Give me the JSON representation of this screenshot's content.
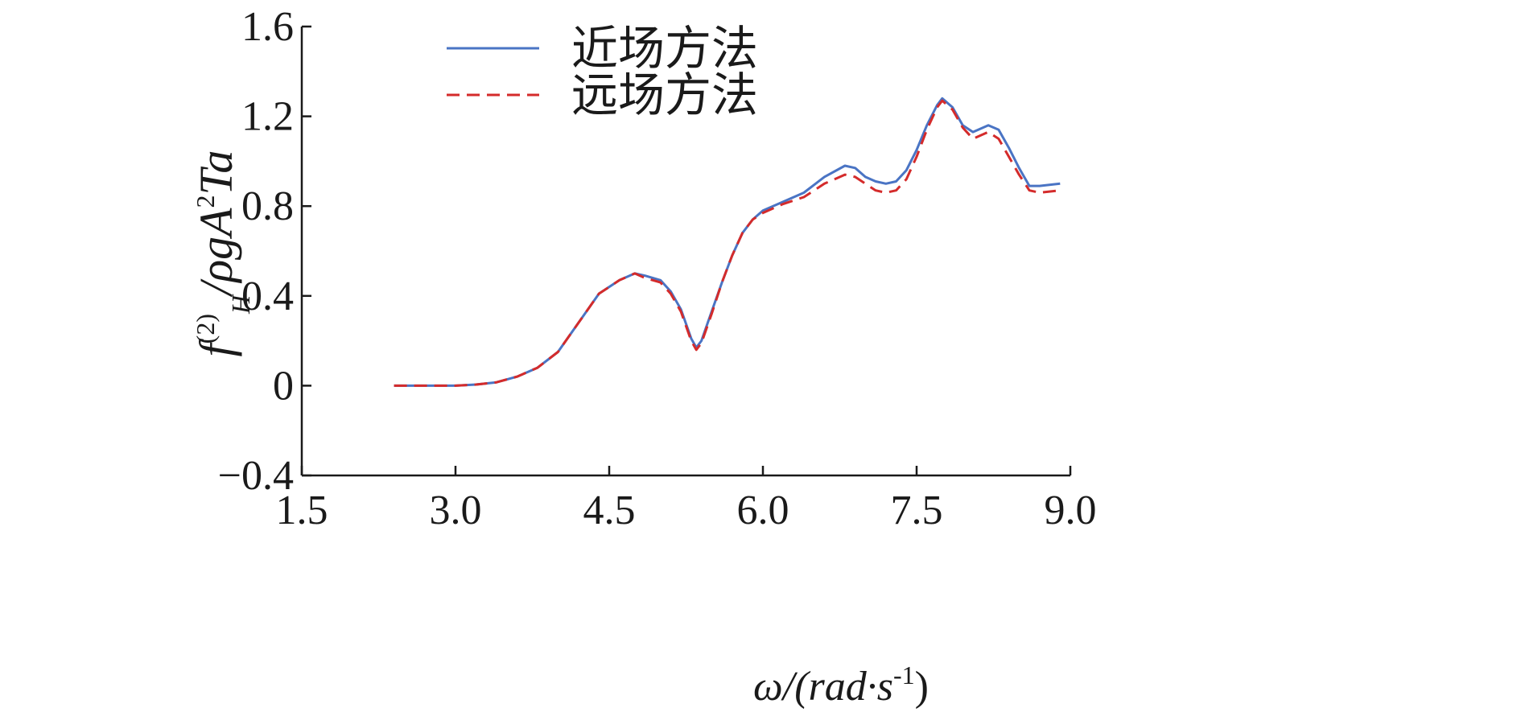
{
  "chart_data": {
    "type": "line",
    "title": "",
    "xlabel": "ω/(rad·s",
    "xlabel_superscript": "-1",
    "xlabel_suffix": ")",
    "ylabel": {
      "f": "f",
      "sup": "(2)",
      "sub": "H",
      "rest": "/ρgA",
      "sup2": "2",
      "tail": "Ta"
    },
    "xlim": [
      1.5,
      9.0
    ],
    "ylim": [
      -0.4,
      1.6
    ],
    "xticks": [
      "1.5",
      "3.0",
      "4.5",
      "6.0",
      "7.5",
      "9.0"
    ],
    "yticks": [
      "−0.4",
      "0",
      "0.4",
      "0.8",
      "1.2",
      "1.6"
    ],
    "grid": false,
    "legend_position": "top-left",
    "series": [
      {
        "name": "近场方法",
        "color": "#4a74c4",
        "style": "solid",
        "x": [
          2.4,
          2.7,
          3.0,
          3.2,
          3.4,
          3.6,
          3.8,
          4.0,
          4.2,
          4.4,
          4.6,
          4.75,
          4.85,
          5.0,
          5.1,
          5.2,
          5.3,
          5.35,
          5.4,
          5.5,
          5.6,
          5.7,
          5.8,
          5.9,
          6.0,
          6.2,
          6.4,
          6.6,
          6.8,
          6.9,
          7.0,
          7.1,
          7.2,
          7.3,
          7.4,
          7.5,
          7.6,
          7.7,
          7.75,
          7.85,
          7.95,
          8.05,
          8.2,
          8.3,
          8.4,
          8.5,
          8.6,
          8.7,
          8.9
        ],
        "y": [
          0.0,
          0.0,
          0.0,
          0.005,
          0.015,
          0.04,
          0.08,
          0.15,
          0.28,
          0.41,
          0.47,
          0.5,
          0.49,
          0.47,
          0.42,
          0.34,
          0.21,
          0.17,
          0.2,
          0.33,
          0.46,
          0.58,
          0.68,
          0.74,
          0.78,
          0.82,
          0.86,
          0.93,
          0.98,
          0.97,
          0.93,
          0.91,
          0.9,
          0.91,
          0.96,
          1.05,
          1.16,
          1.25,
          1.28,
          1.24,
          1.16,
          1.13,
          1.16,
          1.14,
          1.06,
          0.97,
          0.89,
          0.89,
          0.9
        ]
      },
      {
        "name": "远场方法",
        "color": "#d42b2b",
        "style": "dashed",
        "x": [
          2.4,
          2.7,
          3.0,
          3.2,
          3.4,
          3.6,
          3.8,
          4.0,
          4.2,
          4.4,
          4.6,
          4.75,
          4.85,
          5.0,
          5.1,
          5.2,
          5.3,
          5.35,
          5.4,
          5.5,
          5.6,
          5.7,
          5.8,
          5.9,
          6.0,
          6.2,
          6.4,
          6.6,
          6.8,
          6.9,
          7.0,
          7.1,
          7.2,
          7.3,
          7.4,
          7.5,
          7.6,
          7.7,
          7.75,
          7.85,
          7.95,
          8.05,
          8.2,
          8.3,
          8.4,
          8.5,
          8.6,
          8.7,
          8.9
        ],
        "y": [
          0.0,
          0.0,
          0.0,
          0.005,
          0.015,
          0.04,
          0.08,
          0.15,
          0.28,
          0.41,
          0.47,
          0.5,
          0.48,
          0.46,
          0.41,
          0.33,
          0.2,
          0.16,
          0.19,
          0.32,
          0.46,
          0.58,
          0.68,
          0.74,
          0.77,
          0.81,
          0.84,
          0.9,
          0.94,
          0.93,
          0.9,
          0.87,
          0.86,
          0.87,
          0.92,
          1.02,
          1.14,
          1.24,
          1.27,
          1.23,
          1.15,
          1.1,
          1.13,
          1.1,
          1.02,
          0.94,
          0.87,
          0.86,
          0.87
        ]
      }
    ]
  }
}
